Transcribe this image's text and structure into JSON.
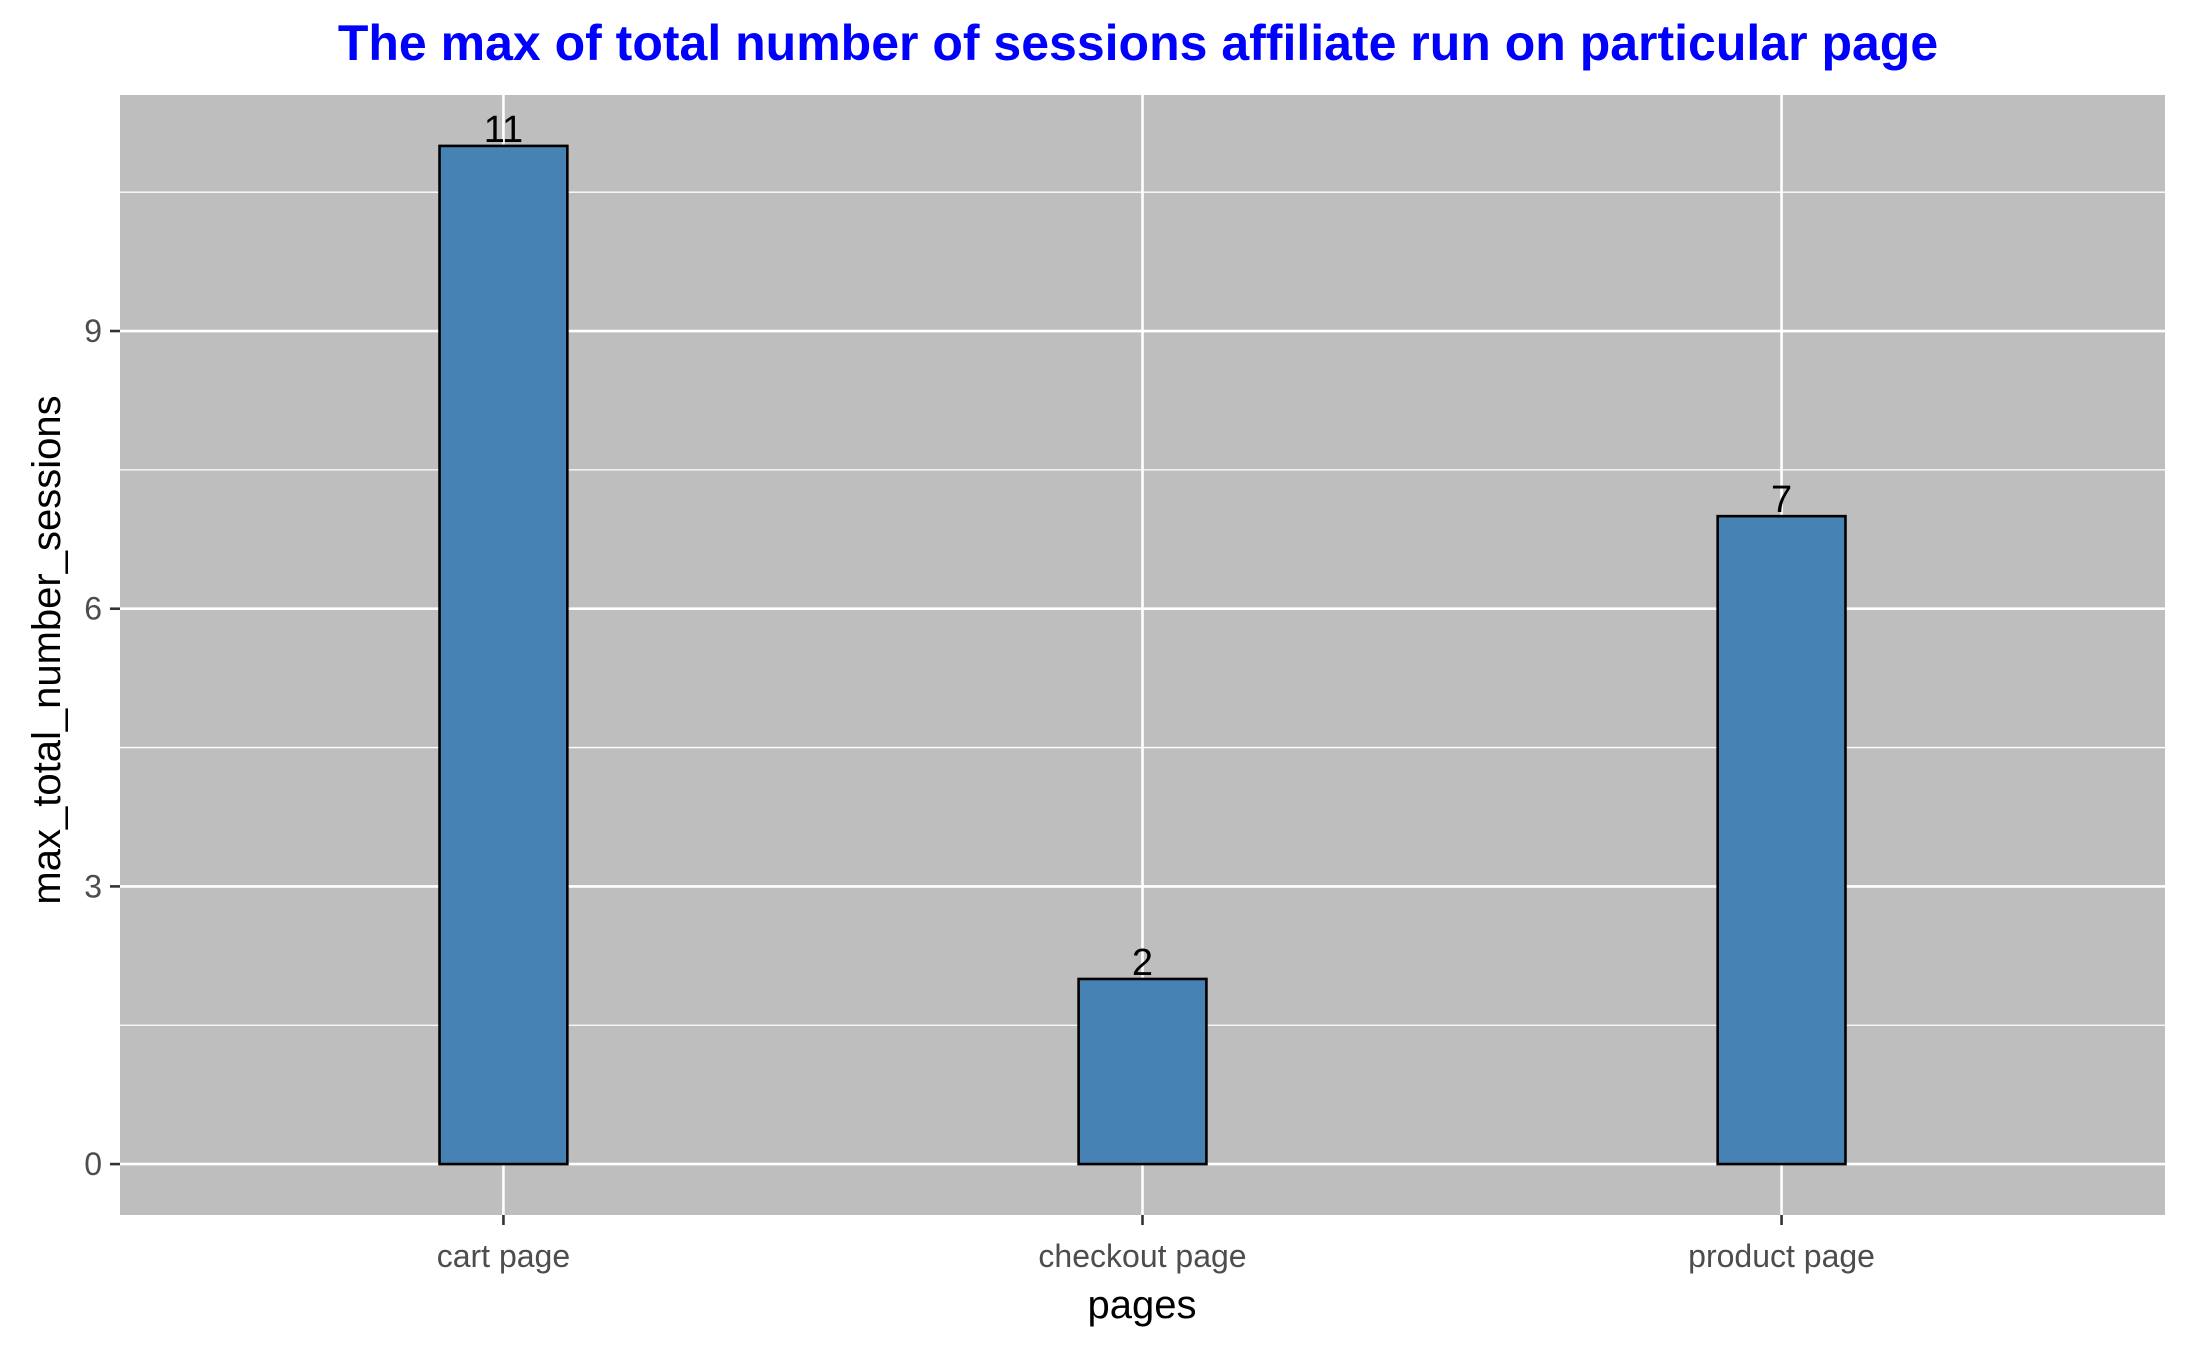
{
  "chart_data": {
    "type": "bar",
    "title": "The max of total number of sessions affiliate run on particular page",
    "xlabel": "pages",
    "ylabel": "max_total_number_sessions",
    "categories": [
      "cart page",
      "checkout page",
      "product page"
    ],
    "values": [
      11,
      2,
      7
    ],
    "data_labels": [
      "11",
      "2",
      "7"
    ],
    "ylim": [
      -0.55,
      11.55
    ],
    "yticks": [
      0,
      3,
      6,
      9
    ],
    "ytick_labels": [
      "0",
      "3",
      "6",
      "9"
    ],
    "y_minor_gridlines": [
      1.5,
      4.5,
      7.5,
      10.5
    ],
    "grid": true,
    "legend": "none",
    "colors": {
      "title": "#0000ff",
      "panel_background": "#bebebe",
      "gridline": "#ffffff",
      "bar_fill": "#4682b4",
      "bar_outline": "#000000",
      "axis_text": "#4d4d4d",
      "axis_title": "#000000",
      "data_label": "#000000"
    }
  }
}
